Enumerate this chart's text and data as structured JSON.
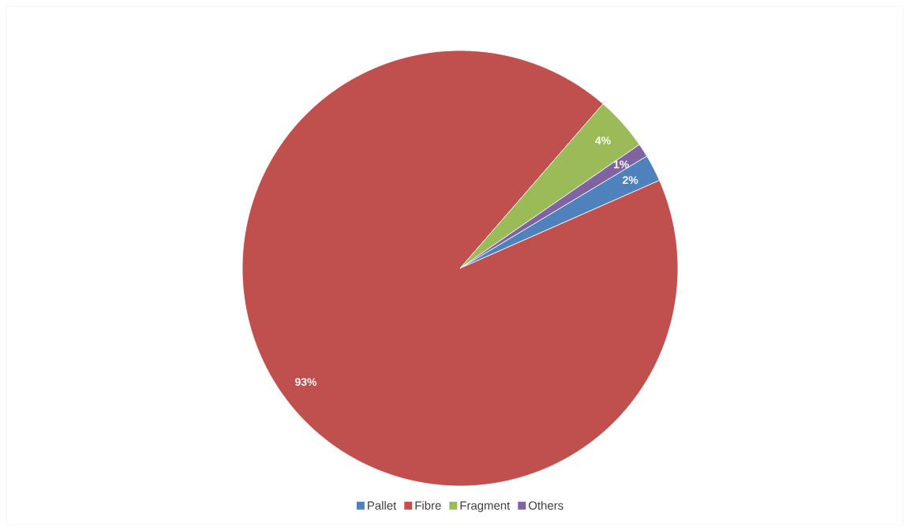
{
  "chart_data": {
    "type": "pie",
    "categories": [
      "Pallet",
      "Fibre",
      "Fragment",
      "Others"
    ],
    "values": [
      2,
      93,
      4,
      1
    ],
    "colors": [
      "#4f81bd",
      "#c0504d",
      "#9bbb59",
      "#8064a2"
    ],
    "value_labels": [
      "2%",
      "93%",
      "4%",
      "1%"
    ],
    "legend": "bottom"
  }
}
